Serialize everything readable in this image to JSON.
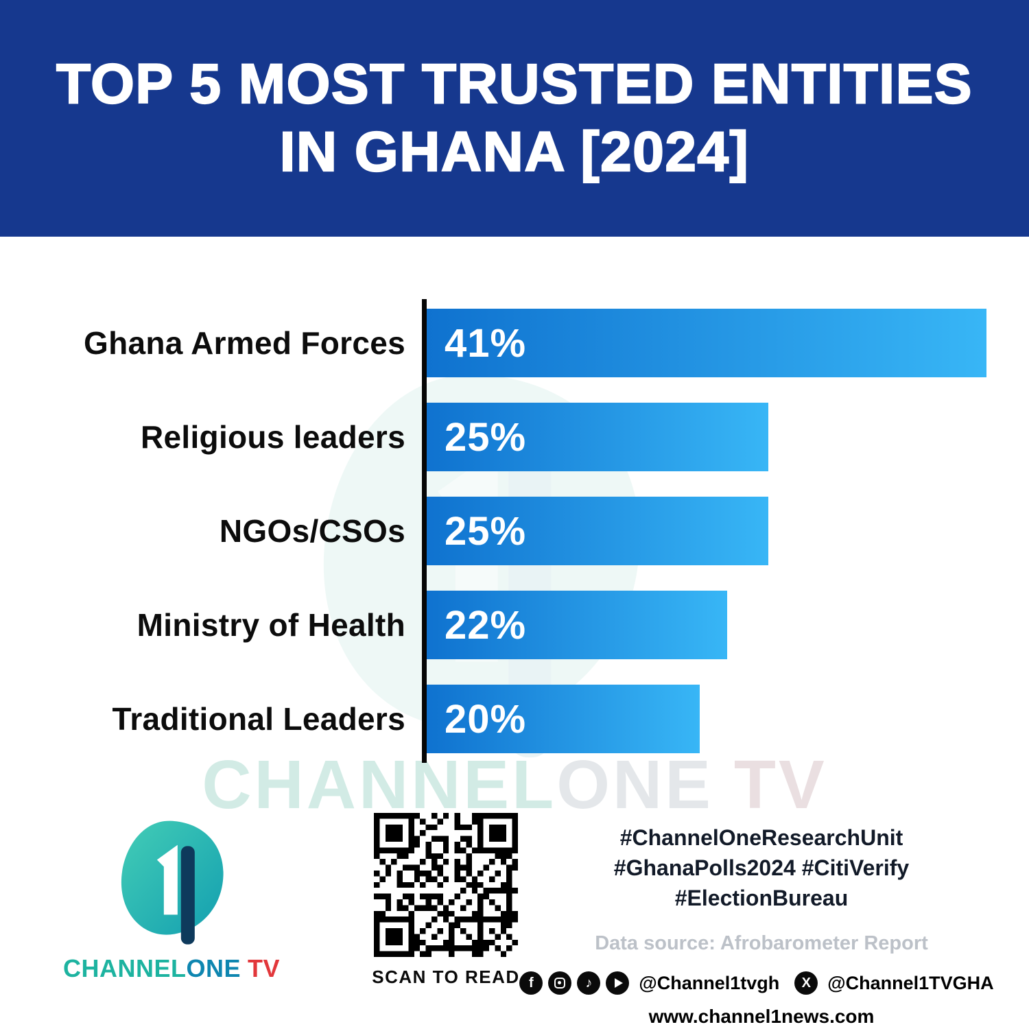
{
  "header": {
    "title_line1": "TOP 5 MOST TRUSTED ENTITIES",
    "title_line2": "IN GHANA [2024]"
  },
  "chart_data": {
    "type": "bar",
    "orientation": "horizontal",
    "title": "TOP 5 MOST TRUSTED ENTITIES IN GHANA [2024]",
    "categories": [
      "Ghana Armed Forces",
      "Religious leaders",
      "NGOs/CSOs",
      "Ministry of Health",
      "Traditional Leaders"
    ],
    "values": [
      41,
      25,
      25,
      22,
      20
    ],
    "value_labels": [
      "41%",
      "25%",
      "25%",
      "22%",
      "20%"
    ],
    "xlabel": "",
    "ylabel": "",
    "xlim": [
      0,
      41
    ],
    "grid": false,
    "legend": false,
    "unit": "%"
  },
  "watermark": {
    "part1": "CHANNEL",
    "part2": "ONE",
    "part3": "TV"
  },
  "footer": {
    "brand": {
      "part1": "CHANNEL",
      "part2": "ONE",
      "part3": "TV"
    },
    "qr_caption": "SCAN TO READ",
    "hashtags_line1": "#ChannelOneResearchUnit",
    "hashtags_line2": "#GhanaPolls2024 #CitiVerify",
    "hashtags_line3": "#ElectionBureau",
    "data_source": "Data source: Afrobarometer Report",
    "social_handle1": "@Channel1tvgh",
    "social_handle2": "@Channel1TVGHA",
    "website": "www.channel1news.com"
  },
  "colors": {
    "header_bg": "#16388e",
    "bar_gradient_start": "#0f72cf",
    "bar_gradient_end": "#38b6f6",
    "axis": "#060606",
    "brand_teal": "#1db3a0",
    "brand_blue": "#0e86b0",
    "brand_red": "#e2373b"
  }
}
